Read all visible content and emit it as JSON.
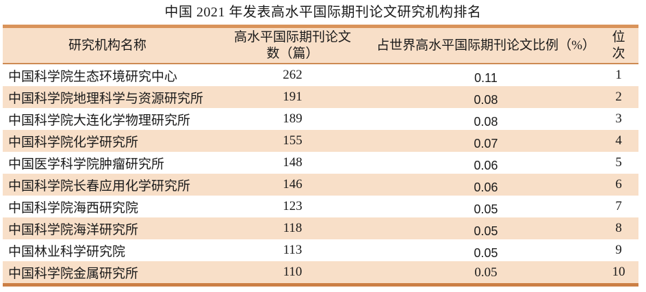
{
  "title": "中国 2021 年发表高水平国际期刊论文研究机构排名",
  "colors": {
    "accent_bar_top": "#d9935a",
    "accent_bar_bottom": "#cc7f45",
    "header_underline": "#cd8a52",
    "stripe_peach": "#f8dfc8",
    "text": "#1a1a1a"
  },
  "table": {
    "headers": {
      "institution": "研究机构名称",
      "papers_line1": "高水平国际期刊论文",
      "papers_line2": "数（篇）",
      "share": "占世界高水平国际期刊论文比例（%）",
      "rank_line1": "位",
      "rank_line2": "次"
    },
    "rows": [
      {
        "institution": "中国科学院生态环境研究中心",
        "papers": "262",
        "share": "0.11",
        "rank": "1"
      },
      {
        "institution": "中国科学院地理科学与资源研究所",
        "papers": "191",
        "share": "0.08",
        "rank": "2"
      },
      {
        "institution": "中国科学院大连化学物理研究所",
        "papers": "189",
        "share": "0.08",
        "rank": "3"
      },
      {
        "institution": "中国科学院化学研究所",
        "papers": "155",
        "share": "0.07",
        "rank": "4"
      },
      {
        "institution": "中国医学科学院肿瘤研究所",
        "papers": "148",
        "share": "0.06",
        "rank": "5"
      },
      {
        "institution": "中国科学院长春应用化学研究所",
        "papers": "146",
        "share": "0.06",
        "rank": "6"
      },
      {
        "institution": "中国科学院海西研究院",
        "papers": "123",
        "share": "0.05",
        "rank": "7"
      },
      {
        "institution": "中国科学院海洋研究所",
        "papers": "118",
        "share": "0.05",
        "rank": "8"
      },
      {
        "institution": "中国林业科学研究院",
        "papers": "113",
        "share": "0.05",
        "rank": "9"
      },
      {
        "institution": "中国科学院金属研究所",
        "papers": "110",
        "share": "0.05",
        "rank": "10"
      }
    ]
  }
}
